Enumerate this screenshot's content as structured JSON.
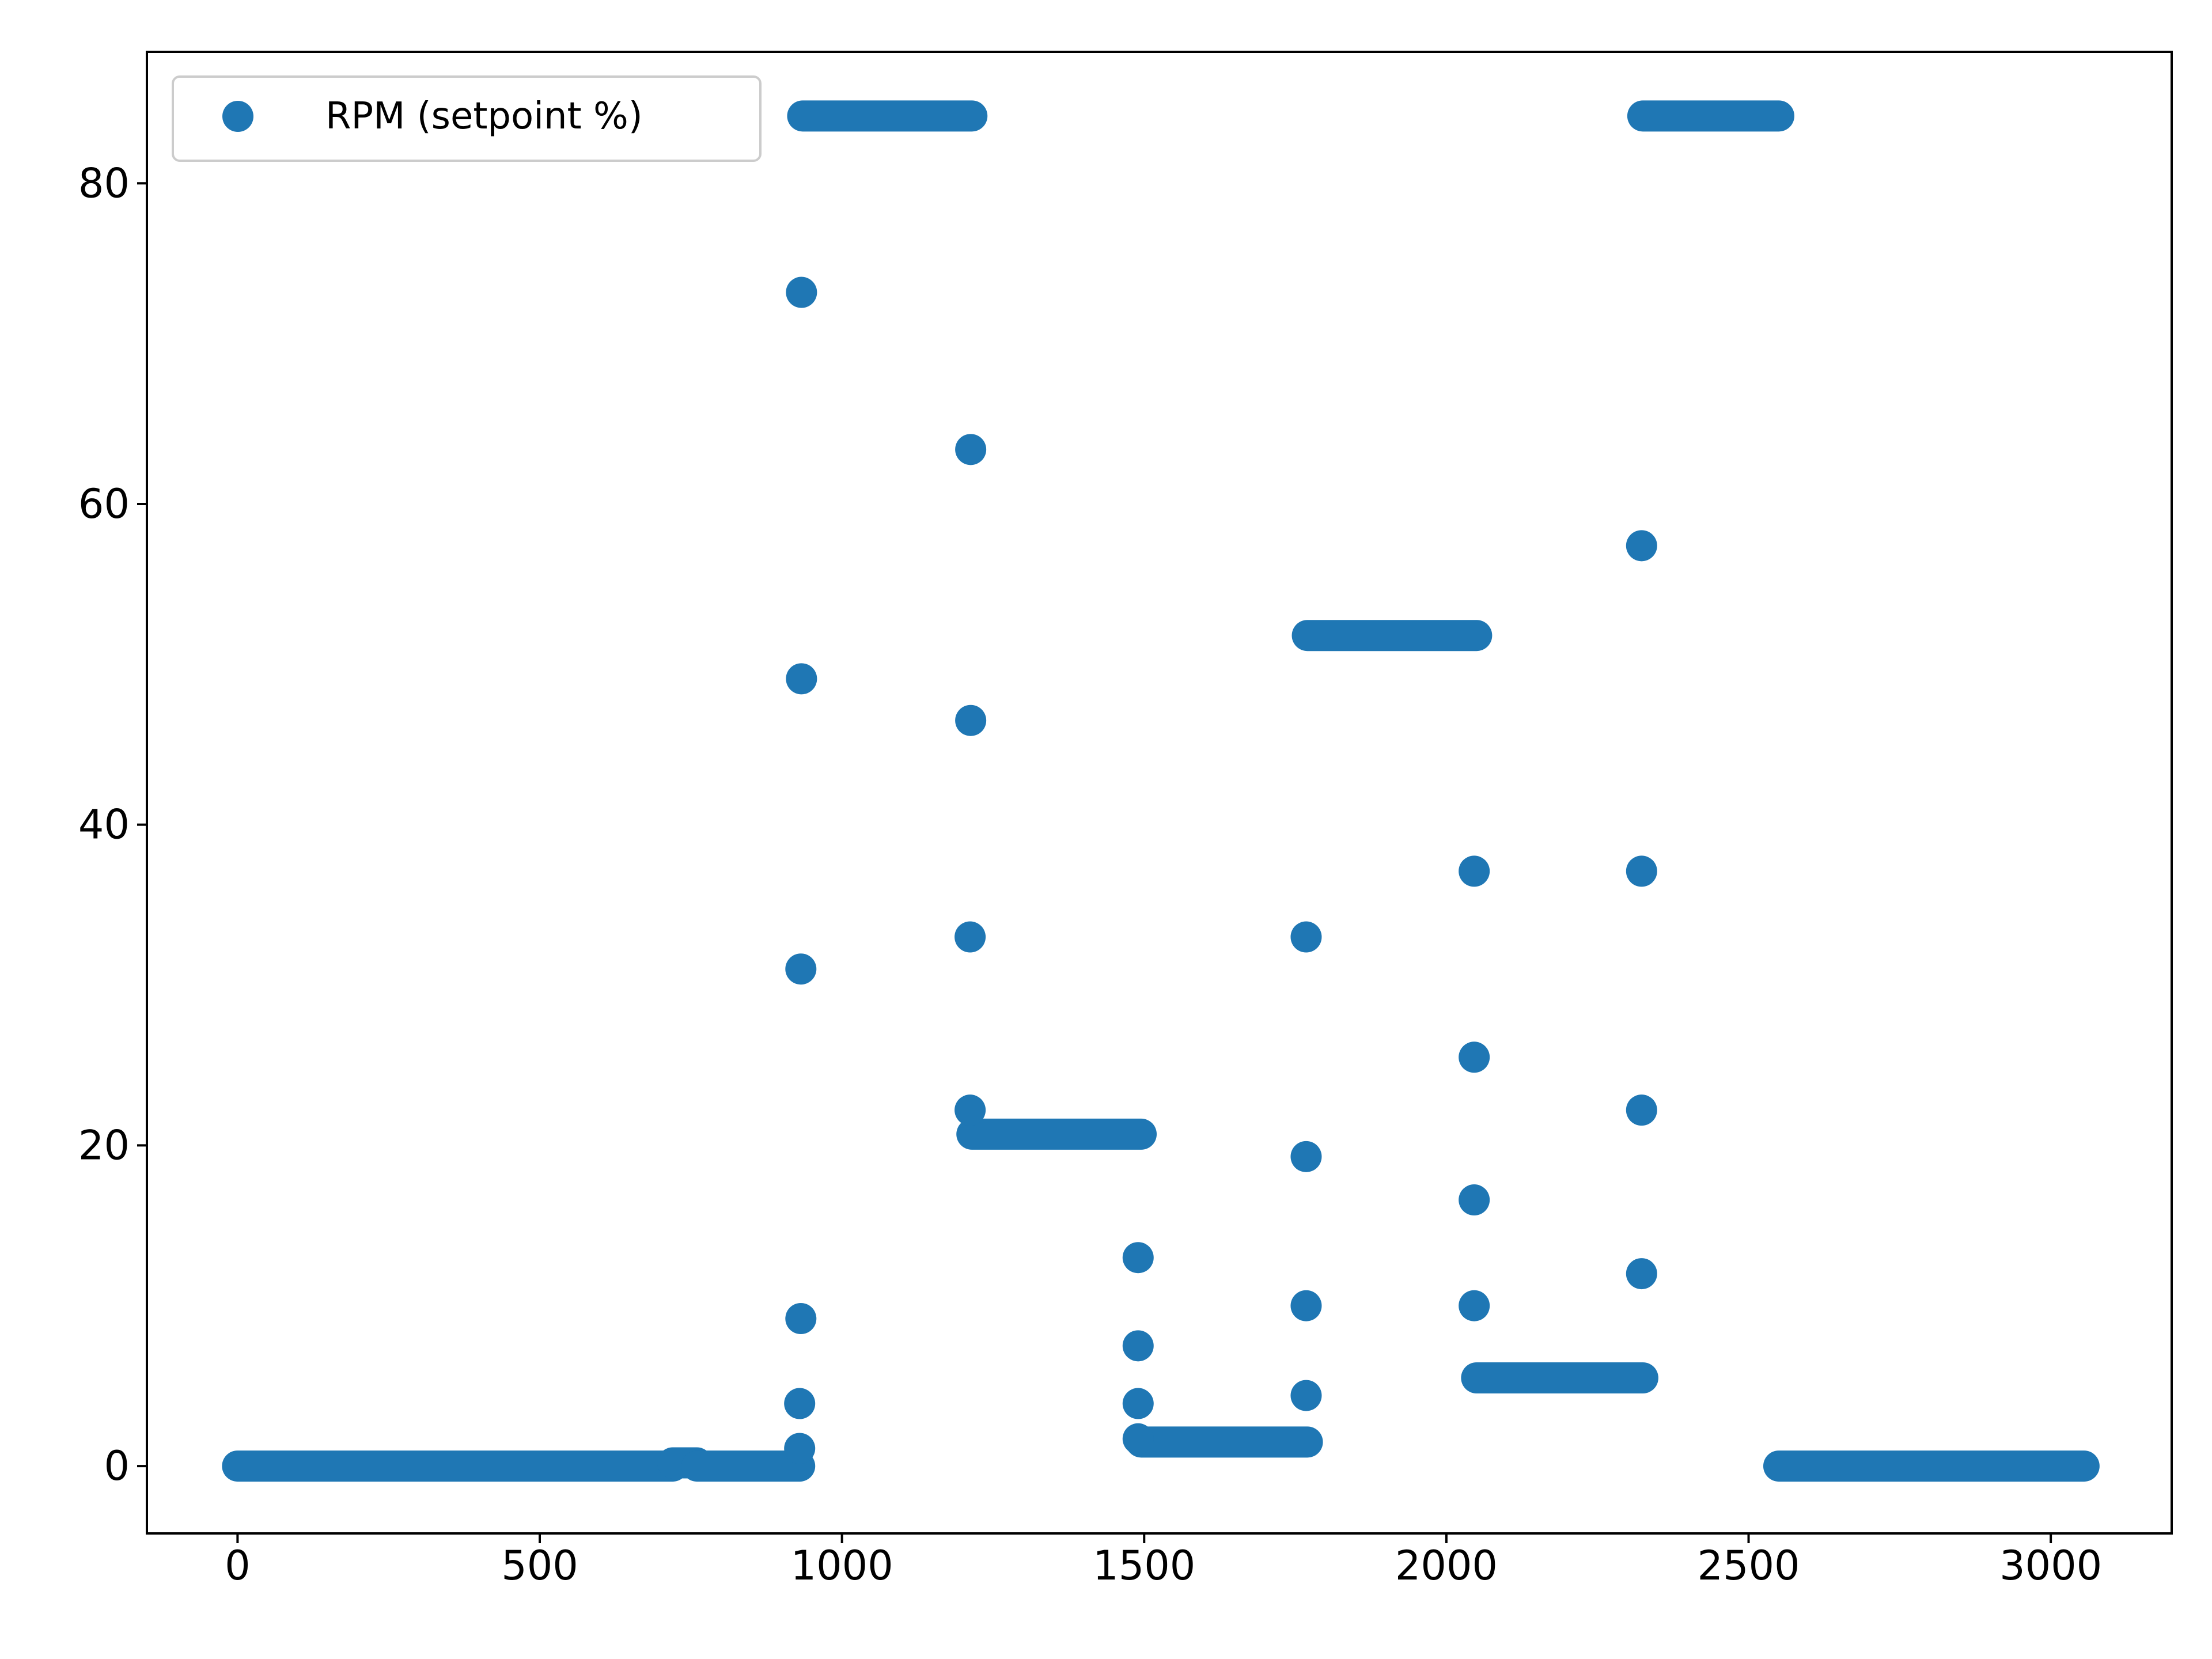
{
  "chart_data": {
    "type": "scatter",
    "title": "",
    "xlabel": "",
    "ylabel": "",
    "xlim": [
      -150,
      3200
    ],
    "ylim": [
      -4.2,
      88.2
    ],
    "xticks": [
      0,
      500,
      1000,
      1500,
      2000,
      2500,
      3000
    ],
    "yticks": [
      0,
      20,
      40,
      60,
      80
    ],
    "grid": false,
    "legend": {
      "position": "top-left",
      "entries": [
        "RPM (setpoint %)"
      ]
    },
    "colors": {
      "series": "#1f77b4"
    },
    "series": [
      {
        "name": "RPM (setpoint %)",
        "marker": "circle",
        "segments": [
          {
            "x_start": 0,
            "x_end": 720,
            "y": 0
          },
          {
            "x_start": 720,
            "x_end": 760,
            "y": 0.2
          },
          {
            "x_start": 760,
            "x_end": 930,
            "y": 0
          },
          {
            "x_start": 935,
            "x_end": 1215,
            "y": 84.2
          },
          {
            "x_start": 1215,
            "x_end": 1495,
            "y": 20.7
          },
          {
            "x_start": 1495,
            "x_end": 1770,
            "y": 1.5
          },
          {
            "x_start": 1770,
            "x_end": 2050,
            "y": 51.8
          },
          {
            "x_start": 2050,
            "x_end": 2325,
            "y": 5.5
          },
          {
            "x_start": 2325,
            "x_end": 2550,
            "y": 84.2
          },
          {
            "x_start": 2550,
            "x_end": 3055,
            "y": 0
          }
        ],
        "points": [
          {
            "x": 930,
            "y": 1.1
          },
          {
            "x": 930,
            "y": 3.9
          },
          {
            "x": 932,
            "y": 9.2
          },
          {
            "x": 932,
            "y": 31.0
          },
          {
            "x": 933,
            "y": 49.1
          },
          {
            "x": 933,
            "y": 73.2
          },
          {
            "x": 1212,
            "y": 22.2
          },
          {
            "x": 1212,
            "y": 33.0
          },
          {
            "x": 1213,
            "y": 46.5
          },
          {
            "x": 1213,
            "y": 63.4
          },
          {
            "x": 1490,
            "y": 1.7
          },
          {
            "x": 1490,
            "y": 3.9
          },
          {
            "x": 1490,
            "y": 7.5
          },
          {
            "x": 1490,
            "y": 13.0
          },
          {
            "x": 1768,
            "y": 4.4
          },
          {
            "x": 1768,
            "y": 10.0
          },
          {
            "x": 1768,
            "y": 19.3
          },
          {
            "x": 1768,
            "y": 33.0
          },
          {
            "x": 2046,
            "y": 10.0
          },
          {
            "x": 2046,
            "y": 16.6
          },
          {
            "x": 2046,
            "y": 25.5
          },
          {
            "x": 2046,
            "y": 37.1
          },
          {
            "x": 2323,
            "y": 12.0
          },
          {
            "x": 2323,
            "y": 22.2
          },
          {
            "x": 2323,
            "y": 37.1
          },
          {
            "x": 2323,
            "y": 57.4
          }
        ]
      }
    ]
  }
}
